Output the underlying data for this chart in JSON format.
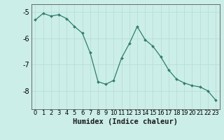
{
  "x": [
    0,
    1,
    2,
    3,
    4,
    5,
    6,
    7,
    8,
    9,
    10,
    11,
    12,
    13,
    14,
    15,
    16,
    17,
    18,
    19,
    20,
    21,
    22,
    23
  ],
  "y": [
    -5.3,
    -5.05,
    -5.15,
    -5.1,
    -5.25,
    -5.55,
    -5.8,
    -6.55,
    -7.65,
    -7.75,
    -7.6,
    -6.75,
    -6.2,
    -5.55,
    -6.05,
    -6.3,
    -6.7,
    -7.2,
    -7.55,
    -7.7,
    -7.8,
    -7.85,
    -8.0,
    -8.35
  ],
  "line_color": "#2e7d6e",
  "marker": "D",
  "marker_size": 2.0,
  "bg_color": "#cceee8",
  "grid_color": "#b8ddd8",
  "axis_color": "#555555",
  "xlabel": "Humidex (Indice chaleur)",
  "xlabel_fontsize": 7.5,
  "ylabel_ticks": [
    -5,
    -6,
    -7,
    -8
  ],
  "xtick_labels": [
    "0",
    "1",
    "2",
    "3",
    "4",
    "5",
    "6",
    "7",
    "8",
    "9",
    "10",
    "11",
    "12",
    "13",
    "14",
    "15",
    "16",
    "17",
    "18",
    "19",
    "20",
    "21",
    "22",
    "23"
  ],
  "ylim": [
    -8.7,
    -4.7
  ],
  "xlim": [
    -0.5,
    23.5
  ],
  "ytick_fontsize": 7,
  "xtick_fontsize": 6
}
